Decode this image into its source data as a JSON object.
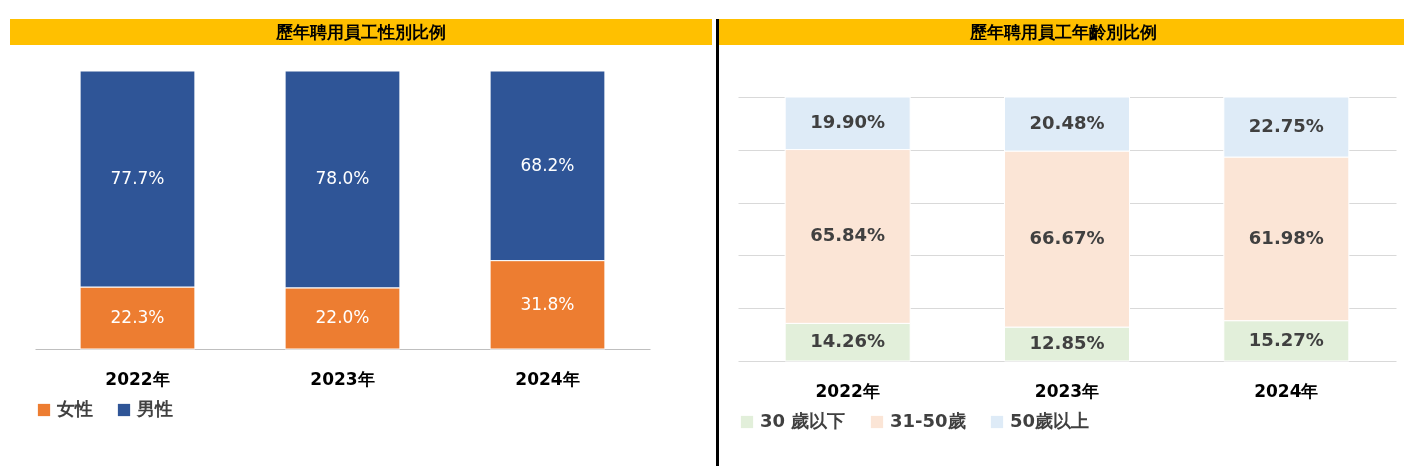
{
  "chart_data": [
    {
      "type": "bar",
      "title": "歷年聘用員工性別比例",
      "categories": [
        "2022年",
        "2023年",
        "2024年"
      ],
      "stacked": true,
      "ylim": [
        0,
        100
      ],
      "tick_labels": "x",
      "grid": false,
      "legend": "bottom",
      "data_labels": true,
      "series": [
        {
          "name": "女性",
          "color": "#ed7d31",
          "values": [
            22.3,
            22.0,
            31.8
          ],
          "value_labels": [
            "22.3%",
            "22.0%",
            "31.8%"
          ]
        },
        {
          "name": "男性",
          "color": "#2f5597",
          "values": [
            77.7,
            78.0,
            68.2
          ],
          "value_labels": [
            "77.7%",
            "78.0%",
            "68.2%"
          ]
        }
      ]
    },
    {
      "type": "bar",
      "title": "歷年聘用員工年齡別比例",
      "categories": [
        "2022年",
        "2023年",
        "2024年"
      ],
      "stacked": true,
      "ylim": [
        0,
        100
      ],
      "yticks": [
        {
          "value": 0,
          "label": null
        },
        {
          "value": 20,
          "label": null
        },
        {
          "value": 40,
          "label": null
        },
        {
          "value": 60,
          "label": null
        },
        {
          "value": 80,
          "label": null
        },
        {
          "value": 100,
          "label": null
        }
      ],
      "tick_labels": "x",
      "grid": "y",
      "legend": "bottom",
      "data_labels": true,
      "series": [
        {
          "name": "30 歲以下",
          "color": "#e2efda",
          "values": [
            14.26,
            12.85,
            15.27
          ],
          "value_labels": [
            "14.26%",
            "12.85%",
            "15.27%"
          ]
        },
        {
          "name": "31-50歲",
          "color": "#fbe5d6",
          "values": [
            65.84,
            66.67,
            61.98
          ],
          "value_labels": [
            "65.84%",
            "66.67%",
            "61.98%"
          ]
        },
        {
          "name": "50歲以上",
          "color": "#deebf7",
          "values": [
            19.9,
            20.48,
            22.75
          ],
          "value_labels": [
            "19.90%",
            "20.48%",
            "22.75%"
          ]
        }
      ]
    }
  ]
}
